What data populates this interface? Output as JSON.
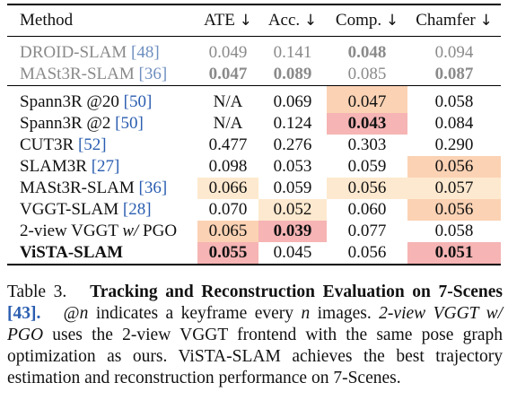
{
  "table": {
    "headers": {
      "method": "Method",
      "ate": "ATE",
      "acc": "Acc.",
      "comp": "Comp.",
      "chamfer": "Chamfer",
      "arrow": "↓"
    },
    "reference_rows": [
      {
        "name": "DROID-SLAM",
        "cite": "[48]",
        "ate": "0.049",
        "acc": "0.141",
        "comp": "0.048",
        "chamfer": "0.094"
      },
      {
        "name": "MASt3R-SLAM",
        "cite": "[36]",
        "ate": "0.047",
        "acc": "0.089",
        "comp": "0.085",
        "chamfer": "0.087"
      }
    ],
    "rows": [
      {
        "name": "Spann3R @20",
        "cite": "[50]",
        "ate": "N/A",
        "acc": "0.069",
        "comp": "0.047",
        "chamfer": "0.058"
      },
      {
        "name": "Spann3R @2",
        "cite": "[50]",
        "ate": "N/A",
        "acc": "0.124",
        "comp": "0.043",
        "chamfer": "0.084"
      },
      {
        "name": "CUT3R",
        "cite": "[52]",
        "ate": "0.477",
        "acc": "0.276",
        "comp": "0.303",
        "chamfer": "0.290"
      },
      {
        "name": "SLAM3R",
        "cite": "[27]",
        "ate": "0.098",
        "acc": "0.053",
        "comp": "0.059",
        "chamfer": "0.056"
      },
      {
        "name": "MASt3R-SLAM",
        "cite": "[36]",
        "ate": "0.066",
        "acc": "0.059",
        "comp": "0.056",
        "chamfer": "0.057"
      },
      {
        "name": "VGGT-SLAM",
        "cite": "[28]",
        "ate": "0.070",
        "acc": "0.052",
        "comp": "0.060",
        "chamfer": "0.056"
      },
      {
        "name_pre": "2-view VGGT ",
        "name_it": "w/",
        "name_post": " PGO",
        "ate": "0.065",
        "acc": "0.039",
        "comp": "0.077",
        "chamfer": "0.058"
      },
      {
        "name": "ViSTA-SLAM",
        "ate": "0.055",
        "acc": "0.045",
        "comp": "0.056",
        "chamfer": "0.051"
      }
    ],
    "highlight_colors": {
      "first": "#f6b4b4",
      "second": "#fbd2b4",
      "third": "#fde9cf"
    }
  },
  "caption": {
    "label": "Table 3.",
    "title": "Tracking and Reconstruction Evaluation on 7-Scenes",
    "title_cite": "[43].",
    "text1": "@",
    "var_n": "n",
    "text2": " indicates a keyframe every ",
    "var_n2": "n",
    "text3": " images. ",
    "italic_method": "2-view VGGT w/ PGO",
    "text4": " uses the 2-view VGGT frontend with the same pose graph optimization as ours. ViSTA-SLAM achieves the best trajectory estimation and reconstruction performance on 7-Scenes."
  }
}
